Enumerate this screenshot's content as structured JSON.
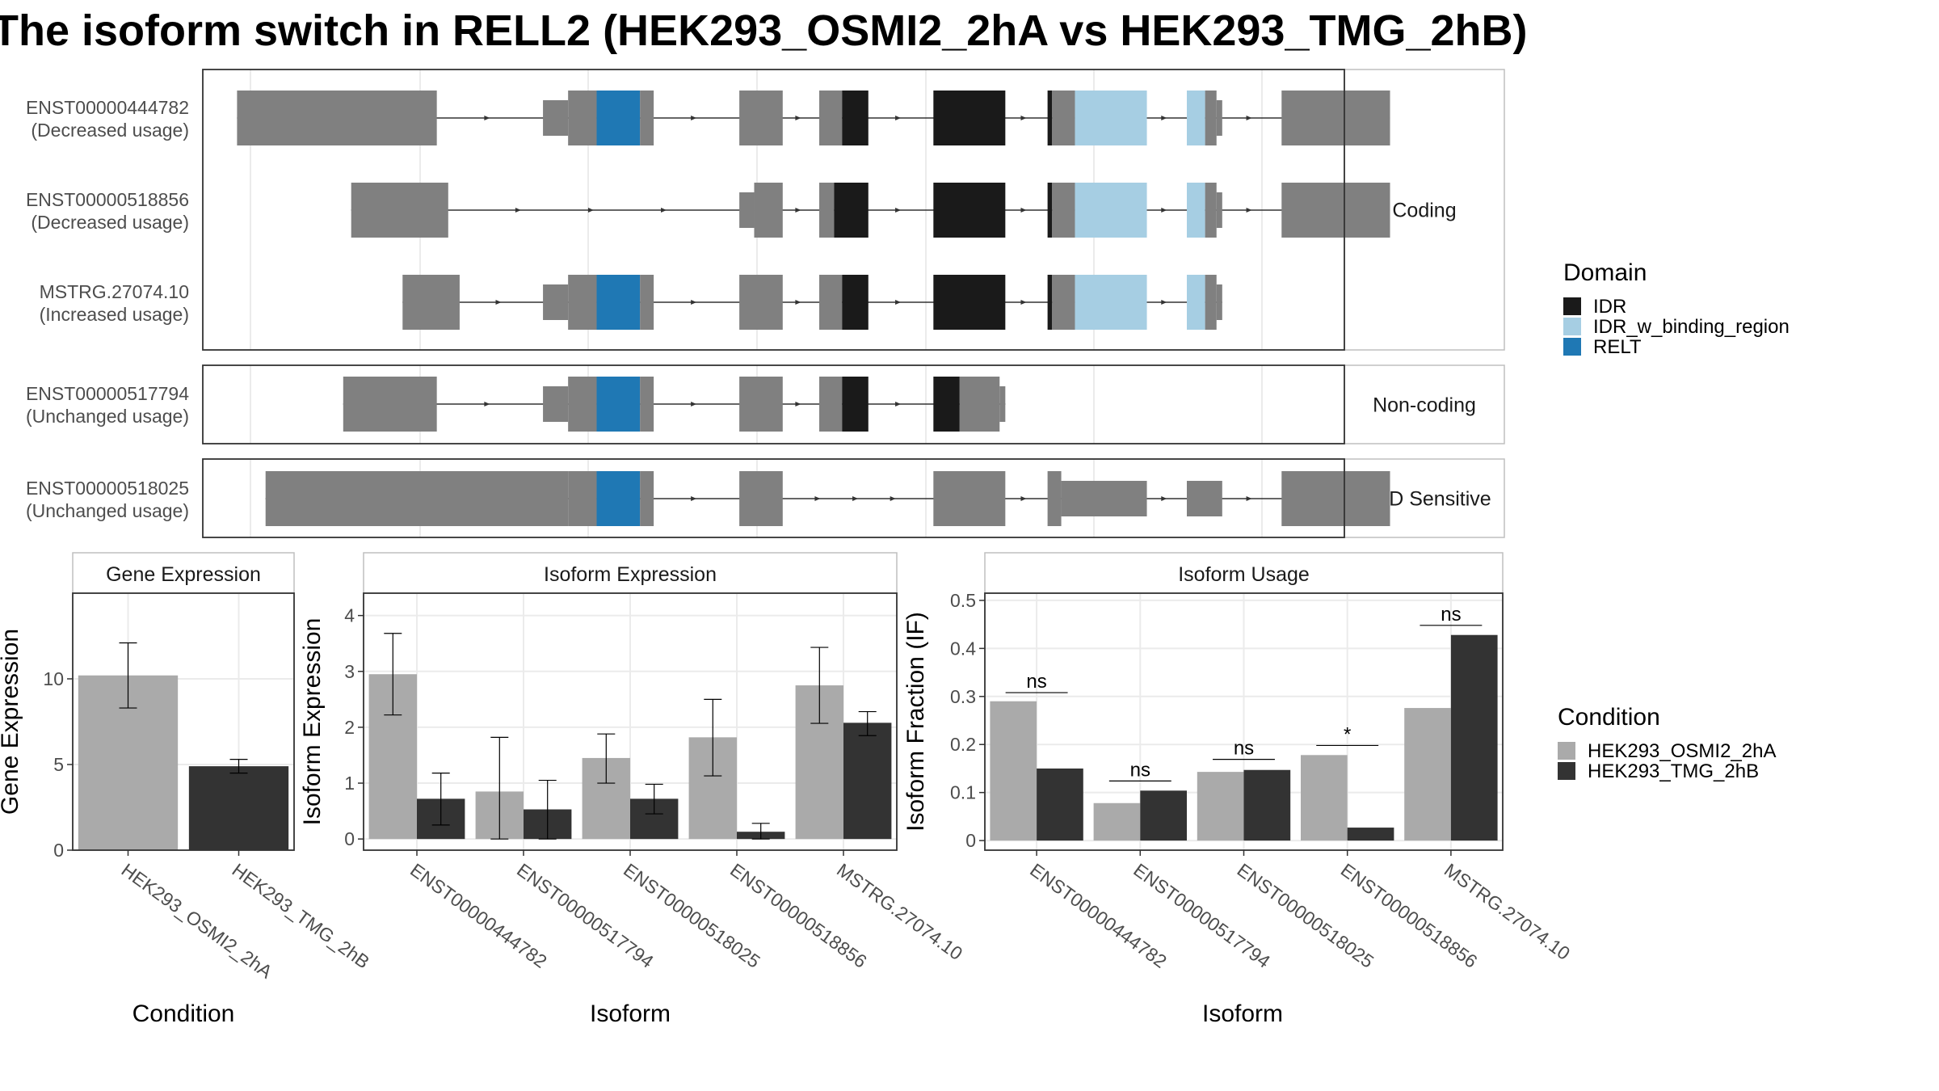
{
  "title": "The isoform switch in RELL2 (HEK293_OSMI2_2hA vs HEK293_TMG_2hB)",
  "colors": {
    "exon": "#808080",
    "IDR": "#1a1a1a",
    "IDR_w_binding_region": "#a6cee3",
    "RELT": "#1f78b4",
    "cond_A": "#aaaaaa",
    "cond_B": "#333333"
  },
  "structure": {
    "coordinate_range": [
      0,
      1000
    ],
    "groups": [
      {
        "label": "Coding",
        "transcripts": [
          {
            "id": "ENST00000444782",
            "usage": "(Decreased usage)",
            "segments": [
              {
                "start": 30,
                "end": 205,
                "type": "exon",
                "thick": true
              },
              {
                "start": 298,
                "end": 320,
                "type": "exon",
                "thick": false
              },
              {
                "start": 320,
                "end": 345,
                "type": "exon",
                "thick": true
              },
              {
                "start": 345,
                "end": 383,
                "type": "RELT",
                "thick": true
              },
              {
                "start": 383,
                "end": 395,
                "type": "exon",
                "thick": true
              },
              {
                "start": 470,
                "end": 508,
                "type": "exon",
                "thick": true
              },
              {
                "start": 540,
                "end": 560,
                "type": "exon",
                "thick": true
              },
              {
                "start": 560,
                "end": 583,
                "type": "IDR",
                "thick": true
              },
              {
                "start": 640,
                "end": 703,
                "type": "IDR",
                "thick": true
              },
              {
                "start": 740,
                "end": 744,
                "type": "IDR",
                "thick": true
              },
              {
                "start": 744,
                "end": 764,
                "type": "exon",
                "thick": true
              },
              {
                "start": 764,
                "end": 827,
                "type": "IDR_w_binding_region",
                "thick": true
              },
              {
                "start": 862,
                "end": 878,
                "type": "IDR_w_binding_region",
                "thick": true
              },
              {
                "start": 878,
                "end": 888,
                "type": "exon",
                "thick": true
              },
              {
                "start": 888,
                "end": 893,
                "type": "exon",
                "thick": false
              },
              {
                "start": 945,
                "end": 1040,
                "type": "exon",
                "thick": true
              }
            ]
          },
          {
            "id": "ENST00000518856",
            "usage": "(Decreased usage)",
            "segments": [
              {
                "start": 130,
                "end": 215,
                "type": "exon",
                "thick": true
              },
              {
                "start": 470,
                "end": 483,
                "type": "exon",
                "thick": false
              },
              {
                "start": 483,
                "end": 508,
                "type": "exon",
                "thick": true
              },
              {
                "start": 540,
                "end": 553,
                "type": "exon",
                "thick": true
              },
              {
                "start": 553,
                "end": 583,
                "type": "IDR",
                "thick": true
              },
              {
                "start": 640,
                "end": 703,
                "type": "IDR",
                "thick": true
              },
              {
                "start": 740,
                "end": 744,
                "type": "IDR",
                "thick": true
              },
              {
                "start": 744,
                "end": 764,
                "type": "exon",
                "thick": true
              },
              {
                "start": 764,
                "end": 827,
                "type": "IDR_w_binding_region",
                "thick": true
              },
              {
                "start": 862,
                "end": 878,
                "type": "IDR_w_binding_region",
                "thick": true
              },
              {
                "start": 878,
                "end": 888,
                "type": "exon",
                "thick": true
              },
              {
                "start": 888,
                "end": 893,
                "type": "exon",
                "thick": false
              },
              {
                "start": 945,
                "end": 1040,
                "type": "exon",
                "thick": true
              }
            ]
          },
          {
            "id": "MSTRG.27074.10",
            "usage": "(Increased usage)",
            "segments": [
              {
                "start": 175,
                "end": 225,
                "type": "exon",
                "thick": true
              },
              {
                "start": 298,
                "end": 320,
                "type": "exon",
                "thick": false
              },
              {
                "start": 320,
                "end": 345,
                "type": "exon",
                "thick": true
              },
              {
                "start": 345,
                "end": 383,
                "type": "RELT",
                "thick": true
              },
              {
                "start": 383,
                "end": 395,
                "type": "exon",
                "thick": true
              },
              {
                "start": 470,
                "end": 508,
                "type": "exon",
                "thick": true
              },
              {
                "start": 540,
                "end": 560,
                "type": "exon",
                "thick": true
              },
              {
                "start": 560,
                "end": 583,
                "type": "IDR",
                "thick": true
              },
              {
                "start": 640,
                "end": 703,
                "type": "IDR",
                "thick": true
              },
              {
                "start": 740,
                "end": 744,
                "type": "IDR",
                "thick": true
              },
              {
                "start": 744,
                "end": 764,
                "type": "exon",
                "thick": true
              },
              {
                "start": 764,
                "end": 827,
                "type": "IDR_w_binding_region",
                "thick": true
              },
              {
                "start": 862,
                "end": 878,
                "type": "IDR_w_binding_region",
                "thick": true
              },
              {
                "start": 878,
                "end": 888,
                "type": "exon",
                "thick": true
              },
              {
                "start": 888,
                "end": 893,
                "type": "exon",
                "thick": false
              }
            ]
          }
        ]
      },
      {
        "label": "Non-coding",
        "transcripts": [
          {
            "id": "ENST00000517794",
            "usage": "(Unchanged usage)",
            "segments": [
              {
                "start": 123,
                "end": 205,
                "type": "exon",
                "thick": true
              },
              {
                "start": 298,
                "end": 320,
                "type": "exon",
                "thick": false
              },
              {
                "start": 320,
                "end": 345,
                "type": "exon",
                "thick": true
              },
              {
                "start": 345,
                "end": 383,
                "type": "RELT",
                "thick": true
              },
              {
                "start": 383,
                "end": 395,
                "type": "exon",
                "thick": true
              },
              {
                "start": 470,
                "end": 508,
                "type": "exon",
                "thick": true
              },
              {
                "start": 540,
                "end": 560,
                "type": "exon",
                "thick": true
              },
              {
                "start": 560,
                "end": 583,
                "type": "IDR",
                "thick": true
              },
              {
                "start": 640,
                "end": 663,
                "type": "IDR",
                "thick": true
              },
              {
                "start": 663,
                "end": 698,
                "type": "exon",
                "thick": true
              },
              {
                "start": 698,
                "end": 703,
                "type": "exon",
                "thick": false
              }
            ]
          }
        ]
      },
      {
        "label": "NMD Sensitive",
        "transcripts": [
          {
            "id": "ENST00000518025",
            "usage": "(Unchanged usage)",
            "segments": [
              {
                "start": 55,
                "end": 320,
                "type": "exon",
                "thick": true
              },
              {
                "start": 320,
                "end": 345,
                "type": "exon",
                "thick": true
              },
              {
                "start": 345,
                "end": 383,
                "type": "RELT",
                "thick": true
              },
              {
                "start": 383,
                "end": 395,
                "type": "exon",
                "thick": true
              },
              {
                "start": 470,
                "end": 508,
                "type": "exon",
                "thick": true
              },
              {
                "start": 640,
                "end": 703,
                "type": "exon",
                "thick": true
              },
              {
                "start": 740,
                "end": 752,
                "type": "exon",
                "thick": true
              },
              {
                "start": 752,
                "end": 827,
                "type": "exon",
                "thick": false
              },
              {
                "start": 862,
                "end": 893,
                "type": "exon",
                "thick": false
              },
              {
                "start": 945,
                "end": 1040,
                "type": "exon",
                "thick": true
              }
            ]
          }
        ]
      }
    ]
  },
  "legends": {
    "domain": {
      "title": "Domain",
      "items": [
        "IDR",
        "IDR_w_binding_region",
        "RELT"
      ]
    },
    "condition": {
      "title": "Condition",
      "items": [
        "HEK293_OSMI2_2hA",
        "HEK293_TMG_2hB"
      ]
    }
  },
  "chart_data": [
    {
      "type": "bar",
      "title": "Gene Expression",
      "xlabel": "Condition",
      "ylabel": "Gene Expression",
      "ylim": [
        0,
        15
      ],
      "yticks": [
        0,
        5,
        10
      ],
      "categories": [
        "HEK293_OSMI2_2hA",
        "HEK293_TMG_2hB"
      ],
      "series": [
        {
          "name": "HEK293_OSMI2_2hA",
          "values": [
            10.2,
            null
          ],
          "err_low": [
            8.3,
            null
          ],
          "err_high": [
            12.1,
            null
          ]
        },
        {
          "name": "HEK293_TMG_2hB",
          "values": [
            null,
            4.9
          ],
          "err_low": [
            null,
            4.5
          ],
          "err_high": [
            null,
            5.3
          ]
        }
      ]
    },
    {
      "type": "bar",
      "title": "Isoform Expression",
      "xlabel": "Isoform",
      "ylabel": "Isoform Expression",
      "ylim": [
        -0.2,
        4.4
      ],
      "yticks": [
        0,
        1,
        2,
        3,
        4
      ],
      "categories": [
        "ENST00000444782",
        "ENST00000517794",
        "ENST00000518025",
        "ENST00000518856",
        "MSTRG.27074.10"
      ],
      "series": [
        {
          "name": "HEK293_OSMI2_2hA",
          "values": [
            2.95,
            0.85,
            1.45,
            1.82,
            2.75
          ],
          "err_low": [
            2.22,
            0.0,
            1.0,
            1.13,
            2.07
          ],
          "err_high": [
            3.68,
            1.82,
            1.88,
            2.5,
            3.43
          ]
        },
        {
          "name": "HEK293_TMG_2hB",
          "values": [
            0.72,
            0.53,
            0.72,
            0.13,
            2.08
          ],
          "err_low": [
            0.25,
            0.0,
            0.45,
            0.0,
            1.85
          ],
          "err_high": [
            1.18,
            1.05,
            0.98,
            0.28,
            2.28
          ]
        }
      ]
    },
    {
      "type": "bar",
      "title": "Isoform Usage",
      "xlabel": "Isoform",
      "ylabel": "Isoform Fraction (IF)",
      "ylim": [
        -0.02,
        0.515
      ],
      "yticks": [
        0.0,
        0.1,
        0.2,
        0.3,
        0.4,
        0.5
      ],
      "categories": [
        "ENST00000444782",
        "ENST00000517794",
        "ENST00000518025",
        "ENST00000518856",
        "MSTRG.27074.10"
      ],
      "series": [
        {
          "name": "HEK293_OSMI2_2hA",
          "values": [
            0.29,
            0.078,
            0.143,
            0.178,
            0.276
          ]
        },
        {
          "name": "HEK293_TMG_2hB",
          "values": [
            0.15,
            0.104,
            0.147,
            0.027,
            0.428
          ]
        }
      ],
      "annotations": [
        {
          "category": "ENST00000444782",
          "label": "ns",
          "y": 0.308
        },
        {
          "category": "ENST00000517794",
          "label": "ns",
          "y": 0.124
        },
        {
          "category": "ENST00000518025",
          "label": "ns",
          "y": 0.169
        },
        {
          "category": "ENST00000518856",
          "label": "*",
          "y": 0.198
        },
        {
          "category": "MSTRG.27074.10",
          "label": "ns",
          "y": 0.448
        }
      ]
    }
  ]
}
